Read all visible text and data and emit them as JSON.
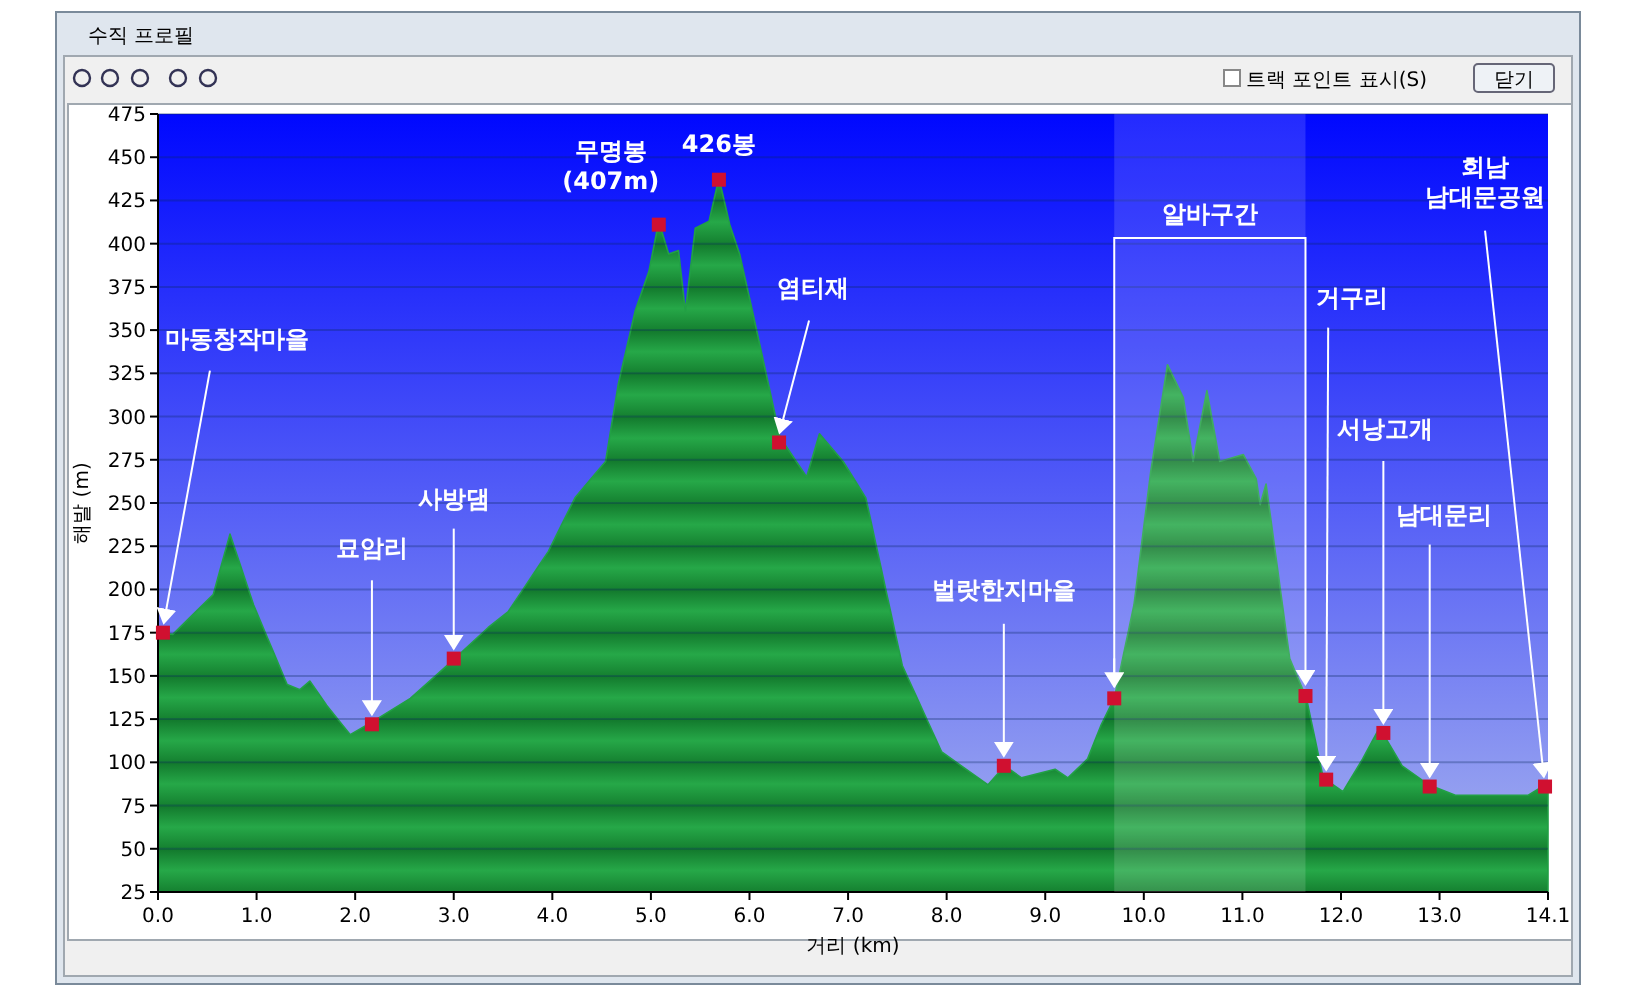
{
  "chart_data": {
    "type": "area",
    "title": "수직 프로필",
    "xlabel": "거리 (km)",
    "ylabel": "해발 (m)",
    "xlim": [
      0,
      14.1
    ],
    "ylim": [
      25,
      475
    ],
    "xticks": [
      {
        "value": 0,
        "label": "0.0"
      },
      {
        "value": 1,
        "label": "1.0"
      },
      {
        "value": 2,
        "label": "2.0"
      },
      {
        "value": 3,
        "label": "3.0"
      },
      {
        "value": 4,
        "label": "4.0"
      },
      {
        "value": 5,
        "label": "5.0"
      },
      {
        "value": 6,
        "label": "6.0"
      },
      {
        "value": 7,
        "label": "7.0"
      },
      {
        "value": 8,
        "label": "8.0"
      },
      {
        "value": 9,
        "label": "9.0"
      },
      {
        "value": 10,
        "label": "10.0"
      },
      {
        "value": 11,
        "label": "11.0"
      },
      {
        "value": 12,
        "label": "12.0"
      },
      {
        "value": 13,
        "label": "13.0"
      },
      {
        "value": 14.1,
        "label": "14.1"
      }
    ],
    "yticks": [
      25,
      50,
      75,
      100,
      125,
      150,
      175,
      200,
      225,
      250,
      275,
      300,
      325,
      350,
      375,
      400,
      425,
      450,
      475
    ],
    "grid": "y",
    "series": [
      {
        "color": "#22a045",
        "x": [
          0,
          0.15,
          0.56,
          0.73,
          0.97,
          1.14,
          1.31,
          1.44,
          1.54,
          1.71,
          1.95,
          2.19,
          2.56,
          3.01,
          3.35,
          3.55,
          3.96,
          4.23,
          4.54,
          4.67,
          4.84,
          4.98,
          5.08,
          5.18,
          5.28,
          5.35,
          5.45,
          5.59,
          5.69,
          5.8,
          5.9,
          6.03,
          6.31,
          6.58,
          6.71,
          6.74,
          6.95,
          7.18,
          7.55,
          7.95,
          8.42,
          8.59,
          8.76,
          9.1,
          9.23,
          9.43,
          9.57,
          9.7,
          9.9,
          10.07,
          10.24,
          10.4,
          10.5,
          10.64,
          10.77,
          11.01,
          11.14,
          11.18,
          11.24,
          11.48,
          11.65,
          11.82,
          12.02,
          12.22,
          12.39,
          12.62,
          12.89,
          13.16,
          13.46,
          13.9,
          14.07,
          14.1
        ],
        "values": [
          175,
          174,
          197,
          232,
          191,
          168,
          145,
          142,
          147,
          133,
          116,
          124,
          137,
          160,
          178,
          187,
          222,
          253,
          274,
          319,
          361,
          384,
          413,
          394,
          396,
          361,
          409,
          413,
          438,
          411,
          394,
          361,
          288,
          265,
          290,
          288,
          274,
          253,
          156,
          106,
          87,
          98,
          91,
          96,
          91,
          102,
          122,
          137,
          191,
          268,
          330,
          311,
          274,
          315,
          274,
          278,
          264,
          249,
          261,
          160,
          137,
          91,
          83,
          102,
          120,
          98,
          87,
          81,
          81,
          81,
          87,
          87
        ]
      }
    ],
    "bands": [
      {
        "axis": "x",
        "from": 9.7,
        "to": 11.64,
        "label": "알바구간"
      }
    ],
    "annotations": [
      {
        "text": "마동창작마을",
        "x": 0.05,
        "y": 175
      },
      {
        "text": "묘암리",
        "x": 2.17,
        "y": 122
      },
      {
        "text": "사방댐",
        "x": 3.0,
        "y": 160
      },
      {
        "text": "무명봉\n(407m)",
        "x": 5.08,
        "y": 411
      },
      {
        "text": "426봉",
        "x": 5.69,
        "y": 437
      },
      {
        "text": "염티재",
        "x": 6.3,
        "y": 285
      },
      {
        "text": "벌랏한지마을",
        "x": 8.58,
        "y": 98
      },
      {
        "text": "거구리",
        "x": 11.85,
        "y": 90
      },
      {
        "text": "서낭고개",
        "x": 12.43,
        "y": 117
      },
      {
        "text": "남대문리",
        "x": 12.9,
        "y": 86
      },
      {
        "text": "회남\n남대문공원",
        "x": 14.07,
        "y": 86
      },
      "트랙 포인트 표시(S)",
      "닫기"
    ]
  }
}
